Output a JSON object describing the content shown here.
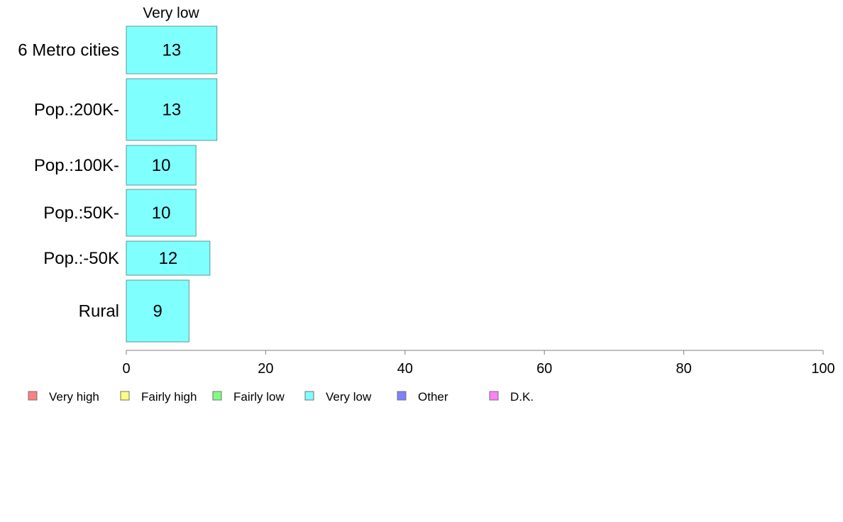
{
  "chart_data": {
    "type": "bar",
    "orientation": "horizontal",
    "column_header": "Very low",
    "categories": [
      "6 Metro cities",
      "Pop.:200K-",
      "Pop.:100K-",
      "Pop.:50K-",
      "Pop.:-50K",
      "Rural"
    ],
    "series": [
      {
        "name": "Very low",
        "values": [
          13,
          13,
          10,
          10,
          12,
          9
        ],
        "color": "#80ffff"
      }
    ],
    "xlim": [
      0,
      100
    ],
    "x_ticks": [
      0,
      20,
      40,
      60,
      80,
      100
    ],
    "grid": false,
    "legend_position": "bottom",
    "legend": [
      {
        "label": "Very high",
        "color": "#ff8080"
      },
      {
        "label": "Fairly high",
        "color": "#ffff80"
      },
      {
        "label": "Fairly low",
        "color": "#80ff80"
      },
      {
        "label": "Very low",
        "color": "#80ffff"
      },
      {
        "label": "Other",
        "color": "#8080ff"
      },
      {
        "label": "D.K.",
        "color": "#ff80ff"
      }
    ],
    "bar_border_color": "#5a9a9a",
    "axis_color": "#808080"
  }
}
